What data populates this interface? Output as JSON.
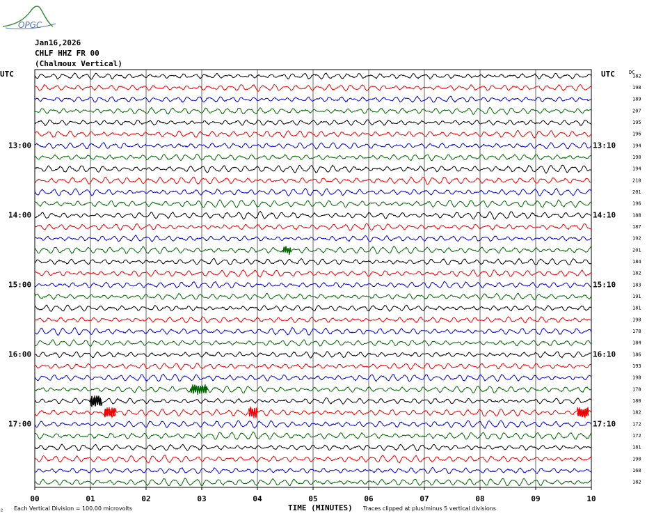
{
  "chart_data": {
    "type": "line",
    "title": {
      "date": "Jan16,2026",
      "station": "CHLF HHZ FR 00",
      "location": "(Chalmoux Vertical)"
    },
    "logo_text": "OPGC",
    "left_tz": "UTC",
    "right_tz": "UTC",
    "dc_label": "DC",
    "left_hour_labels": [
      {
        "row": 6,
        "text": "13:00"
      },
      {
        "row": 12,
        "text": "14:00"
      },
      {
        "row": 18,
        "text": "15:00"
      },
      {
        "row": 24,
        "text": "16:00"
      },
      {
        "row": 30,
        "text": "17:00"
      }
    ],
    "right_hour_labels": [
      {
        "row": 6,
        "text": "13:10"
      },
      {
        "row": 12,
        "text": "14:10"
      },
      {
        "row": 18,
        "text": "15:10"
      },
      {
        "row": 24,
        "text": "16:10"
      },
      {
        "row": 30,
        "text": "17:10"
      }
    ],
    "dc_offsets": [
      182,
      198,
      189,
      207,
      195,
      196,
      194,
      190,
      194,
      210,
      201,
      196,
      188,
      187,
      192,
      201,
      184,
      182,
      183,
      191,
      181,
      190,
      178,
      184,
      186,
      193,
      198,
      178,
      180,
      182,
      172,
      172,
      181,
      190,
      168,
      182
    ],
    "trace_colors": [
      "#000000",
      "#ee0000",
      "#0000cc",
      "#006600"
    ],
    "x_axis": {
      "xlabel": "TIME (MINUTES)",
      "ticks": [
        "00",
        "01",
        "02",
        "03",
        "04",
        "05",
        "06",
        "07",
        "08",
        "09",
        "10"
      ],
      "xlim": [
        0,
        10
      ]
    },
    "footer": {
      "scale_note": "Each Vertical Division =  100.00 microvolts",
      "clip_note": "Traces clipped at plus/minus 5 vertical divisions",
      "corner_mark": "♇"
    },
    "grid": true,
    "row_count": 36,
    "events": [
      {
        "row": 15,
        "minute": 4.45,
        "duration": 0.15,
        "amplitude": 5,
        "color": "green"
      },
      {
        "row": 27,
        "minute": 2.8,
        "duration": 0.3,
        "amplitude": 7,
        "color": "green"
      },
      {
        "row": 28,
        "minute": 1.0,
        "duration": 0.2,
        "amplitude": 9,
        "color": "black"
      },
      {
        "row": 29,
        "minute": 1.25,
        "duration": 0.2,
        "amplitude": 8,
        "color": "red"
      },
      {
        "row": 29,
        "minute": 3.85,
        "duration": 0.15,
        "amplitude": 8,
        "color": "red"
      },
      {
        "row": 29,
        "minute": 9.75,
        "duration": 0.2,
        "amplitude": 8,
        "color": "red"
      }
    ]
  }
}
